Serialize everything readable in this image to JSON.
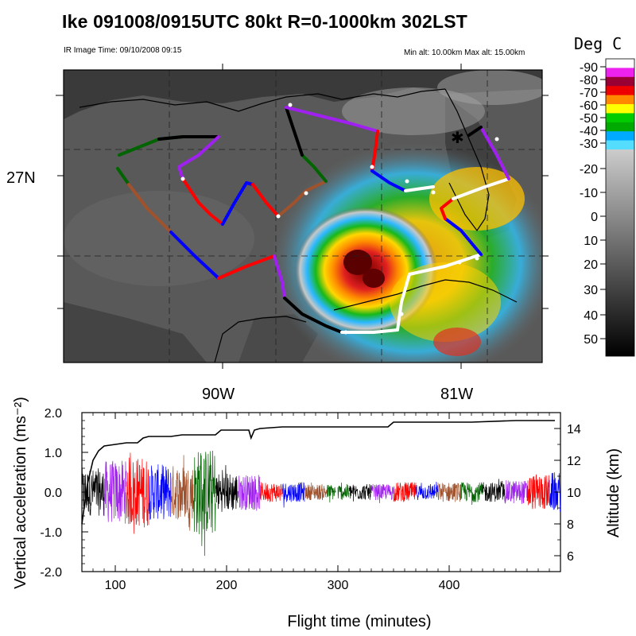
{
  "header": {
    "title": "Ike 091008/0915UTC 80kt  R=0-1000km 302LST",
    "ir_image_time": "IR Image Time: 09/10/2008 09:15",
    "alt_range": "Min alt: 10.00km  Max alt: 15.00km"
  },
  "map": {
    "lat_label": "27N",
    "lon_labels": [
      "90W",
      "81W"
    ]
  },
  "colorbar": {
    "unit_label": "Deg C",
    "tick_labels": [
      "-90",
      "-80",
      "-70",
      "-60",
      "-50",
      "-40",
      "-30",
      "-20",
      "-10",
      "0",
      "10",
      "20",
      "30",
      "40",
      "50"
    ],
    "colors": [
      "#ffffff",
      "#ee22ee",
      "#990033",
      "#ee0000",
      "#ff8800",
      "#ffff00",
      "#00cc00",
      "#00aa00",
      "#00aaff",
      "#55ddff"
    ]
  },
  "chart_data": {
    "type": "line",
    "xlabel": "Flight time (minutes)",
    "ylabel": "Vertical acceleration (ms⁻²)",
    "y2label": "Altitude (km)",
    "xlim": [
      70,
      500
    ],
    "ylim": [
      -2.0,
      2.0
    ],
    "y2lim": [
      5,
      15
    ],
    "x_ticks": [
      100,
      200,
      300,
      400
    ],
    "y_tick_labels": [
      "2.0",
      "1.0",
      "0.0",
      "-1.0",
      "-2.0"
    ],
    "y_ticks": [
      2.0,
      1.0,
      0.0,
      -1.0,
      -2.0
    ],
    "y2_ticks": [
      6,
      8,
      10,
      12,
      14
    ],
    "altitude_series": {
      "x": [
        70,
        75,
        80,
        85,
        90,
        100,
        110,
        120,
        125,
        130,
        140,
        150,
        160,
        170,
        180,
        190,
        195,
        200,
        210,
        220,
        222,
        225,
        230,
        250,
        280,
        295,
        300,
        310,
        330,
        345,
        350,
        380,
        420,
        460,
        495
      ],
      "y": [
        8.0,
        10.5,
        12.0,
        12.6,
        12.9,
        13.0,
        13.1,
        13.1,
        13.4,
        13.5,
        13.5,
        13.5,
        13.6,
        13.6,
        13.6,
        13.6,
        13.9,
        13.9,
        13.9,
        13.9,
        13.4,
        13.9,
        14.0,
        14.1,
        14.1,
        14.1,
        14.1,
        14.1,
        14.1,
        14.1,
        14.4,
        14.4,
        14.4,
        14.5,
        14.5
      ]
    },
    "acceleration_segments": [
      {
        "x_start": 70,
        "x_end": 90,
        "color": "#000000",
        "amplitude": 0.6
      },
      {
        "x_start": 90,
        "x_end": 110,
        "color": "#a020f0",
        "amplitude": 0.8
      },
      {
        "x_start": 110,
        "x_end": 130,
        "color": "#ff0000",
        "amplitude": 0.9
      },
      {
        "x_start": 130,
        "x_end": 150,
        "color": "#0000ff",
        "amplitude": 0.7
      },
      {
        "x_start": 150,
        "x_end": 170,
        "color": "#a0522d",
        "amplitude": 0.7
      },
      {
        "x_start": 170,
        "x_end": 190,
        "color": "#006400",
        "amplitude": 1.1
      },
      {
        "x_start": 190,
        "x_end": 210,
        "color": "#000000",
        "amplitude": 0.5
      },
      {
        "x_start": 210,
        "x_end": 230,
        "color": "#a020f0",
        "amplitude": 0.45
      },
      {
        "x_start": 230,
        "x_end": 250,
        "color": "#ff0000",
        "amplitude": 0.25
      },
      {
        "x_start": 250,
        "x_end": 270,
        "color": "#0000ff",
        "amplitude": 0.25
      },
      {
        "x_start": 270,
        "x_end": 290,
        "color": "#a0522d",
        "amplitude": 0.2
      },
      {
        "x_start": 290,
        "x_end": 298,
        "color": "#006400",
        "amplitude": 0.2
      },
      {
        "x_start": 300,
        "x_end": 310,
        "color": "#006400",
        "amplitude": 0.2
      },
      {
        "x_start": 310,
        "x_end": 330,
        "color": "#000000",
        "amplitude": 0.2
      },
      {
        "x_start": 330,
        "x_end": 350,
        "color": "#a020f0",
        "amplitude": 0.2
      },
      {
        "x_start": 350,
        "x_end": 370,
        "color": "#ff0000",
        "amplitude": 0.25
      },
      {
        "x_start": 370,
        "x_end": 390,
        "color": "#0000ff",
        "amplitude": 0.2
      },
      {
        "x_start": 390,
        "x_end": 410,
        "color": "#a0522d",
        "amplitude": 0.25
      },
      {
        "x_start": 410,
        "x_end": 430,
        "color": "#006400",
        "amplitude": 0.25
      },
      {
        "x_start": 430,
        "x_end": 450,
        "color": "#000000",
        "amplitude": 0.25
      },
      {
        "x_start": 450,
        "x_end": 470,
        "color": "#a020f0",
        "amplitude": 0.3
      },
      {
        "x_start": 470,
        "x_end": 490,
        "color": "#ff0000",
        "amplitude": 0.45
      },
      {
        "x_start": 490,
        "x_end": 500,
        "color": "#0000ff",
        "amplitude": 0.5
      }
    ],
    "flight_track_colors": [
      "#000000",
      "#a020f0",
      "#ff0000",
      "#0000ff",
      "#a0522d",
      "#006400"
    ]
  }
}
